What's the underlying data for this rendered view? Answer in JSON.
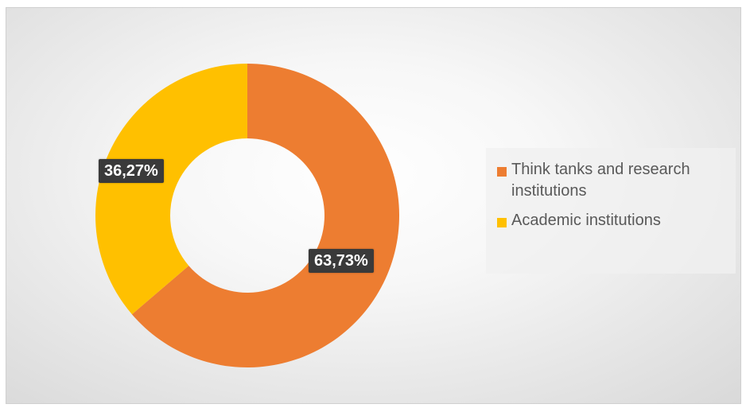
{
  "chart_data": {
    "type": "pie",
    "variant": "donut",
    "title": "",
    "categories": [
      "Think tanks and research institutions",
      "Academic institutions"
    ],
    "values": [
      63.73,
      36.27
    ],
    "value_labels": [
      "63,73%",
      "36,27%"
    ],
    "colors": [
      "#ED7D31",
      "#FFC000"
    ],
    "start_angle_deg": 0,
    "direction": "clockwise",
    "legend_position": "right"
  },
  "legend": {
    "items": [
      {
        "label": "Think tanks and research institutions",
        "color": "#ED7D31"
      },
      {
        "label": "Academic institutions",
        "color": "#FFC000"
      }
    ]
  }
}
